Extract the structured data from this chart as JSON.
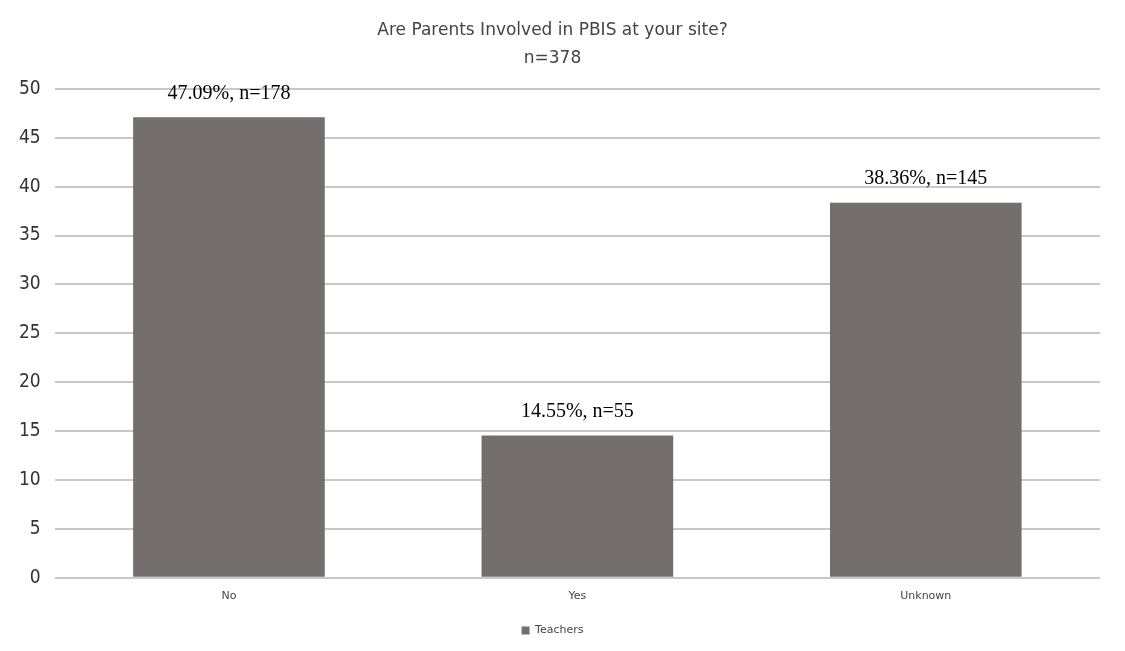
{
  "chart_data": {
    "type": "bar",
    "title": "Are Parents Involved in PBIS at your site?",
    "subtitle": "n=378",
    "categories": [
      "No",
      "Yes",
      "Unknown"
    ],
    "series": [
      {
        "name": "Teachers",
        "color": "#746e6c",
        "values": [
          47.09,
          14.55,
          38.36
        ],
        "value_labels": [
          "47.09%, n=178",
          "14.55%, n=55",
          "38.36%, n=145"
        ]
      }
    ],
    "ylim": [
      0,
      50
    ],
    "yticks": [
      0,
      5,
      10,
      15,
      20,
      25,
      30,
      35,
      40,
      45,
      50
    ],
    "grid": "y",
    "legend": "bottom"
  }
}
